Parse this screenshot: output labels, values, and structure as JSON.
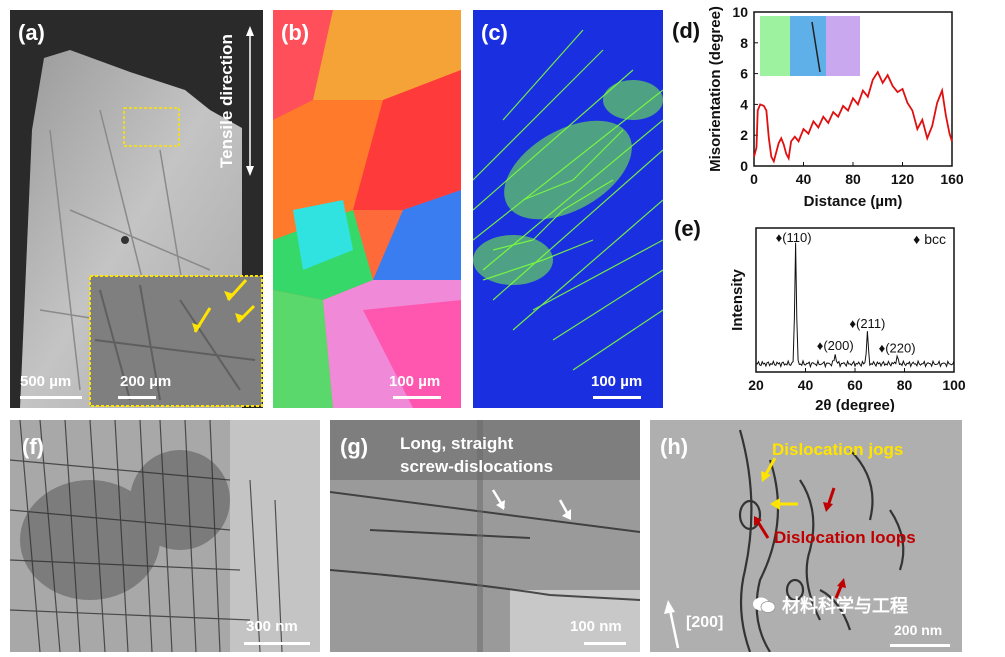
{
  "panels": {
    "a": {
      "label": "(a)",
      "side_text": "Tensile direction",
      "scale_main": "500 µm",
      "scale_inset": "200 µm"
    },
    "b": {
      "label": "(b)",
      "scale": "100 µm"
    },
    "c": {
      "label": "(c)",
      "scale": "100 µm"
    },
    "d": {
      "label": "(d)"
    },
    "e": {
      "label": "(e)"
    },
    "f": {
      "label": "(f)",
      "scale": "300 nm"
    },
    "g": {
      "label": "(g)",
      "annotation_line1": "Long, straight",
      "annotation_line2": "screw-dislocations",
      "scale": "100 nm"
    },
    "h": {
      "label": "(h)",
      "annotation_jogs": "Dislocation jogs",
      "annotation_loops": "Dislocation loops",
      "direction": "[200]",
      "scale": "200 nm"
    }
  },
  "watermark": "材料科学与工程",
  "colors": {
    "yellow": "#ffe400",
    "red": "#c00000",
    "line_red": "#e01010",
    "ebsd_bg": "#1a2fe0",
    "kam_green": "#7cff3a"
  },
  "chart_data": [
    {
      "type": "line",
      "panel": "d",
      "xlabel": "Distance (µm)",
      "ylabel": "Misorientation (degree)",
      "xlim": [
        0,
        160
      ],
      "ylim": [
        0,
        10
      ],
      "xticks": [
        0,
        40,
        80,
        120,
        160
      ],
      "yticks": [
        0,
        2,
        4,
        6,
        8,
        10
      ],
      "x": [
        0,
        2,
        3,
        5,
        8,
        10,
        12,
        14,
        16,
        18,
        20,
        22,
        24,
        26,
        28,
        30,
        33,
        36,
        40,
        44,
        48,
        52,
        56,
        60,
        64,
        68,
        72,
        76,
        80,
        84,
        88,
        92,
        96,
        100,
        104,
        108,
        112,
        116,
        120,
        124,
        128,
        132,
        136,
        140,
        144,
        148,
        152,
        155,
        158,
        160
      ],
      "y": [
        0.6,
        1.2,
        3.6,
        4.0,
        3.9,
        3.6,
        1.8,
        0.6,
        0.3,
        0.9,
        1.5,
        1.8,
        1.4,
        0.8,
        0.5,
        1.6,
        1.9,
        1.6,
        2.4,
        2.1,
        2.9,
        2.5,
        3.2,
        2.8,
        3.5,
        3.2,
        3.9,
        3.6,
        4.4,
        4.0,
        4.9,
        4.5,
        5.6,
        6.1,
        5.4,
        5.9,
        5.2,
        4.8,
        5.0,
        4.1,
        3.6,
        2.4,
        3.0,
        1.8,
        2.6,
        4.1,
        4.9,
        3.3,
        2.1,
        1.6
      ]
    },
    {
      "type": "line",
      "panel": "e",
      "xlabel": "2θ (degree)",
      "ylabel": "Intensity",
      "xlim": [
        20,
        100
      ],
      "xticks": [
        20,
        40,
        60,
        80,
        100
      ],
      "legend": "♦ bcc",
      "peaks": [
        {
          "label": "♦(110)",
          "x": 36,
          "height": 1.0
        },
        {
          "label": "♦(200)",
          "x": 52,
          "height": 0.08
        },
        {
          "label": "♦(211)",
          "x": 65,
          "height": 0.26
        },
        {
          "label": "♦(220)",
          "x": 77,
          "height": 0.06
        }
      ]
    }
  ]
}
